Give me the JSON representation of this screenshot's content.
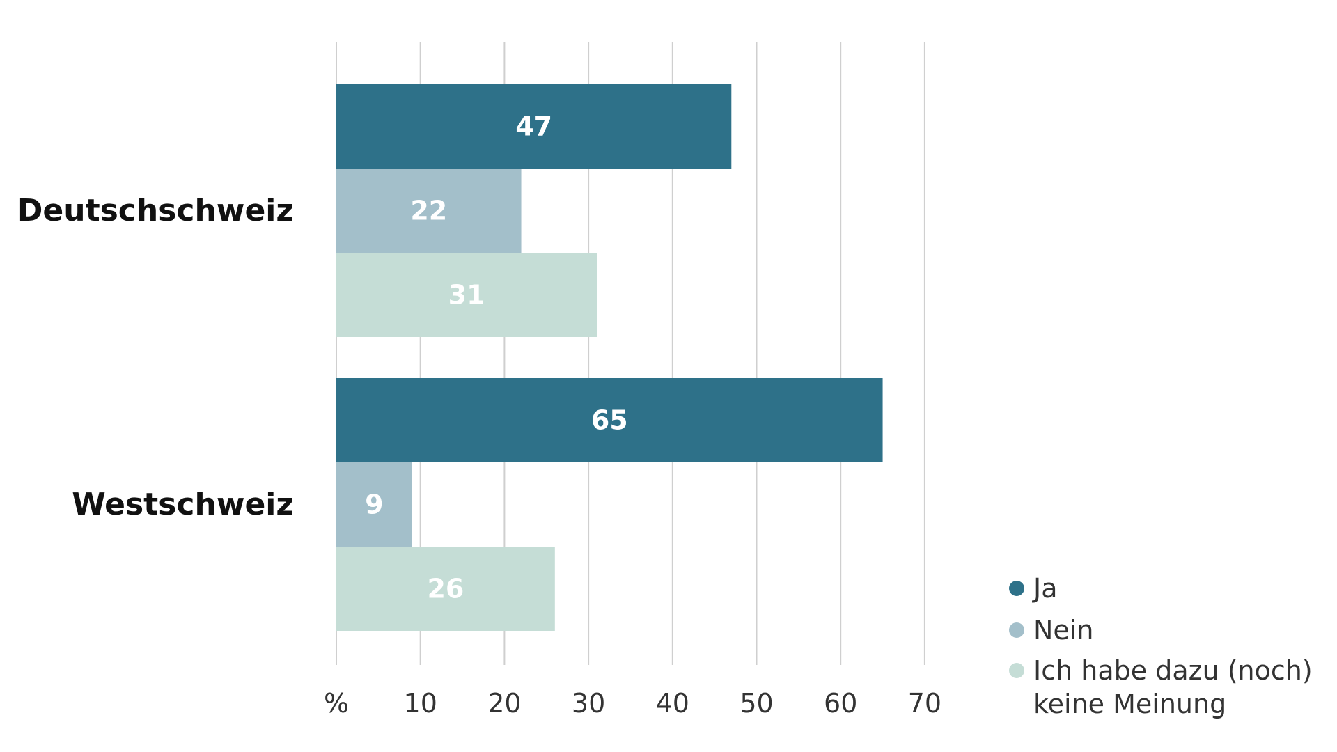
{
  "chart_data": {
    "type": "bar",
    "orientation": "horizontal",
    "categories": [
      "Deutschschweiz",
      "Westschweiz"
    ],
    "series": [
      {
        "name": "Ja",
        "values": [
          47,
          65
        ],
        "color": "#2e7189"
      },
      {
        "name": "Nein",
        "values": [
          22,
          9
        ],
        "color": "#a3bfca"
      },
      {
        "name": "Ich habe dazu (noch) keine Meinung",
        "values": [
          31,
          26
        ],
        "color": "#c5ddd6"
      }
    ],
    "legend_lines": [
      [
        "Ja"
      ],
      [
        "Nein"
      ],
      [
        "Ich habe dazu (noch)",
        "keine Meinung"
      ]
    ],
    "xlim": [
      0,
      70
    ],
    "x_ticks": [
      0,
      10,
      20,
      30,
      40,
      50,
      60,
      70
    ],
    "x_tick_labels": [
      "%",
      "10",
      "20",
      "30",
      "40",
      "50",
      "60",
      "70"
    ],
    "grid": true,
    "legend_position": "bottom-right"
  }
}
